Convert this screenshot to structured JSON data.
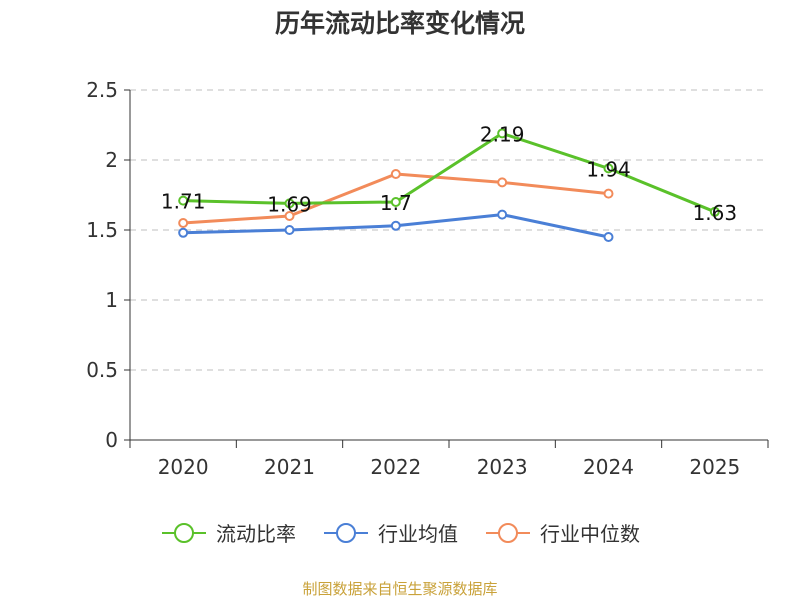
{
  "chart_data": {
    "type": "line",
    "title": "历年流动比率变化情况",
    "categories": [
      "2020",
      "2021",
      "2022",
      "2023",
      "2024",
      "2025"
    ],
    "ylim": [
      0,
      2.5
    ],
    "yticks": [
      "0",
      "0.5",
      "1",
      "1.5",
      "2",
      "2.5"
    ],
    "ytick_values": [
      0,
      0.5,
      1,
      1.5,
      2,
      2.5
    ],
    "grid": true,
    "legend_position": "bottom",
    "series": [
      {
        "name": "流动比率",
        "color": "#5ac12a",
        "values": [
          1.71,
          1.69,
          1.7,
          2.19,
          1.94,
          1.63
        ],
        "labels": [
          "1.71",
          "1.69",
          "1.7",
          "2.19",
          "1.94",
          "1.63"
        ]
      },
      {
        "name": "行业均值",
        "color": "#4a7fd6",
        "values": [
          1.48,
          1.5,
          1.53,
          1.61,
          1.45,
          null
        ]
      },
      {
        "name": "行业中位数",
        "color": "#f28b5a",
        "values": [
          1.55,
          1.6,
          1.9,
          1.84,
          1.76,
          null
        ]
      }
    ]
  },
  "source_text": "制图数据来自恒生聚源数据库"
}
